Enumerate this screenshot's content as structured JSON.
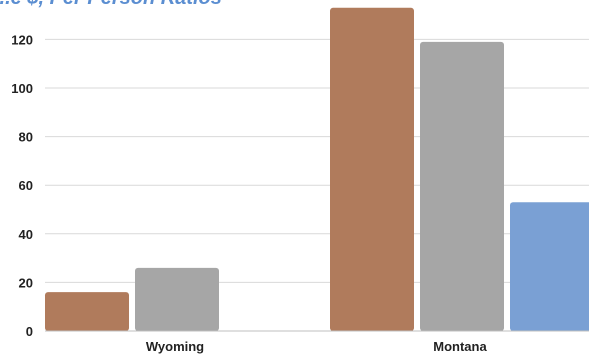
{
  "chart_data": {
    "type": "bar",
    "title": "...e $, Per Person Ratios",
    "categories": [
      "Wyoming",
      "Montana"
    ],
    "series": [
      {
        "values": [
          16,
          133
        ],
        "color": "#b07b5c"
      },
      {
        "values": [
          26,
          119
        ],
        "color": "#a6a6a6"
      },
      {
        "values": [
          0,
          53
        ],
        "color": "#7aa0d4"
      }
    ],
    "yticks": [
      0,
      20,
      40,
      60,
      80,
      100,
      120
    ],
    "ylim": [
      0,
      133
    ],
    "xlabel": "",
    "ylabel": "",
    "grid": true,
    "legend": "none"
  }
}
